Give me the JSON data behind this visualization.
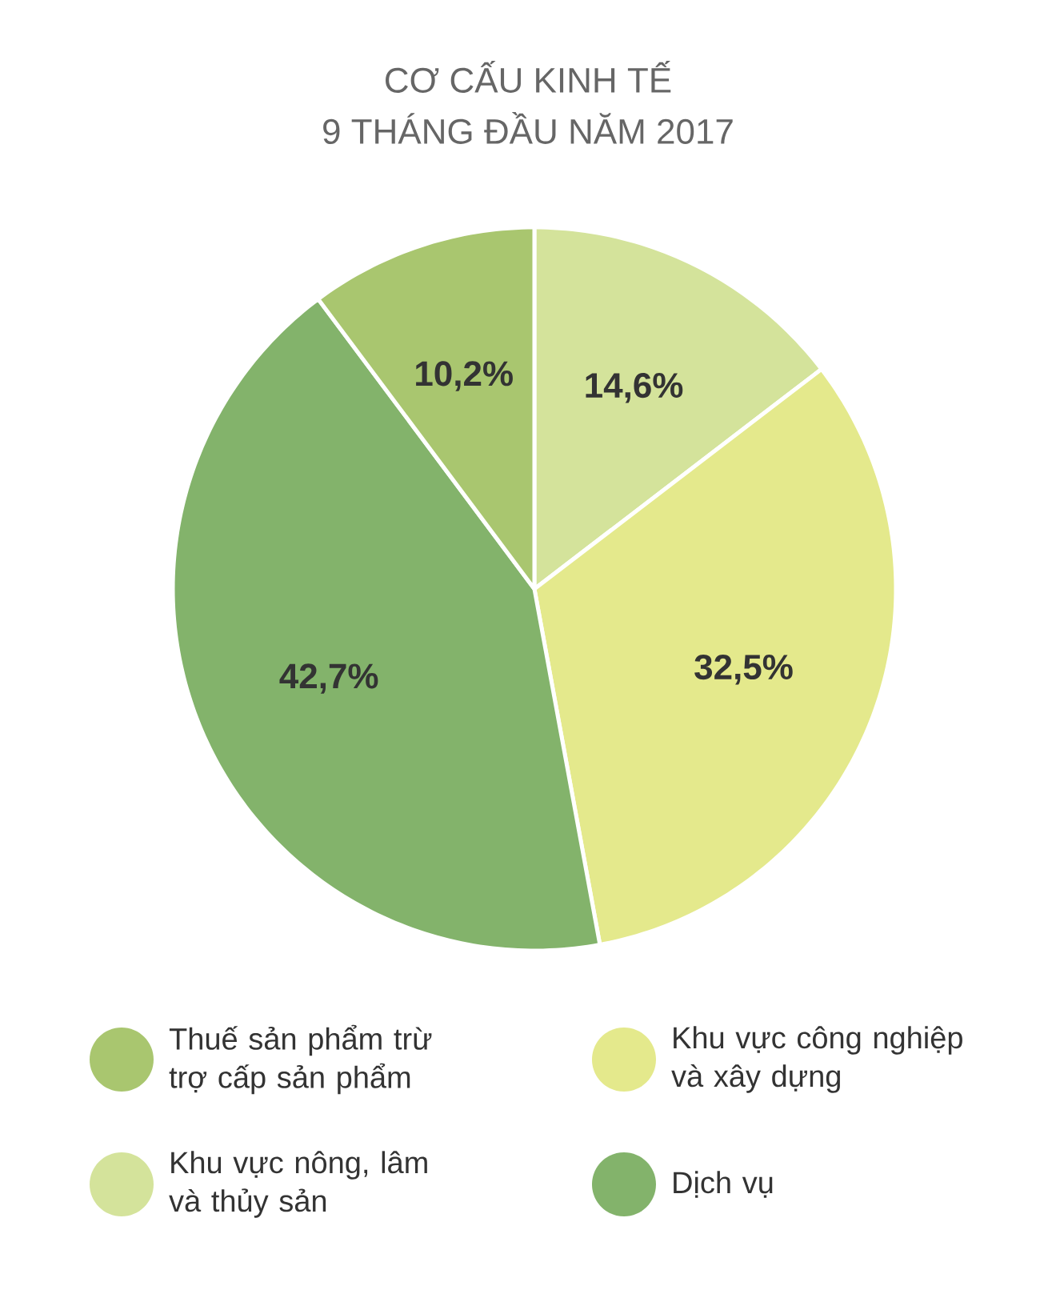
{
  "chart_data": {
    "type": "pie",
    "title": "CƠ CẤU KINH TẾ",
    "subtitle": "9 THÁNG ĐẦU NĂM 2017",
    "categories": [
      "Khu vực nông, lâm và thủy sản",
      "Khu vực công nghiệp và xây dựng",
      "Dịch vụ",
      "Thuế sản phẩm trừ trợ cấp sản phẩm"
    ],
    "values": [
      14.6,
      32.5,
      42.7,
      10.2
    ],
    "value_labels": [
      "14,6%",
      "32,5%",
      "42,7%",
      "10,2%"
    ],
    "colors": [
      "#d4e39b",
      "#e4e98c",
      "#83b36b",
      "#a9c66f"
    ],
    "legend": "bottom"
  }
}
